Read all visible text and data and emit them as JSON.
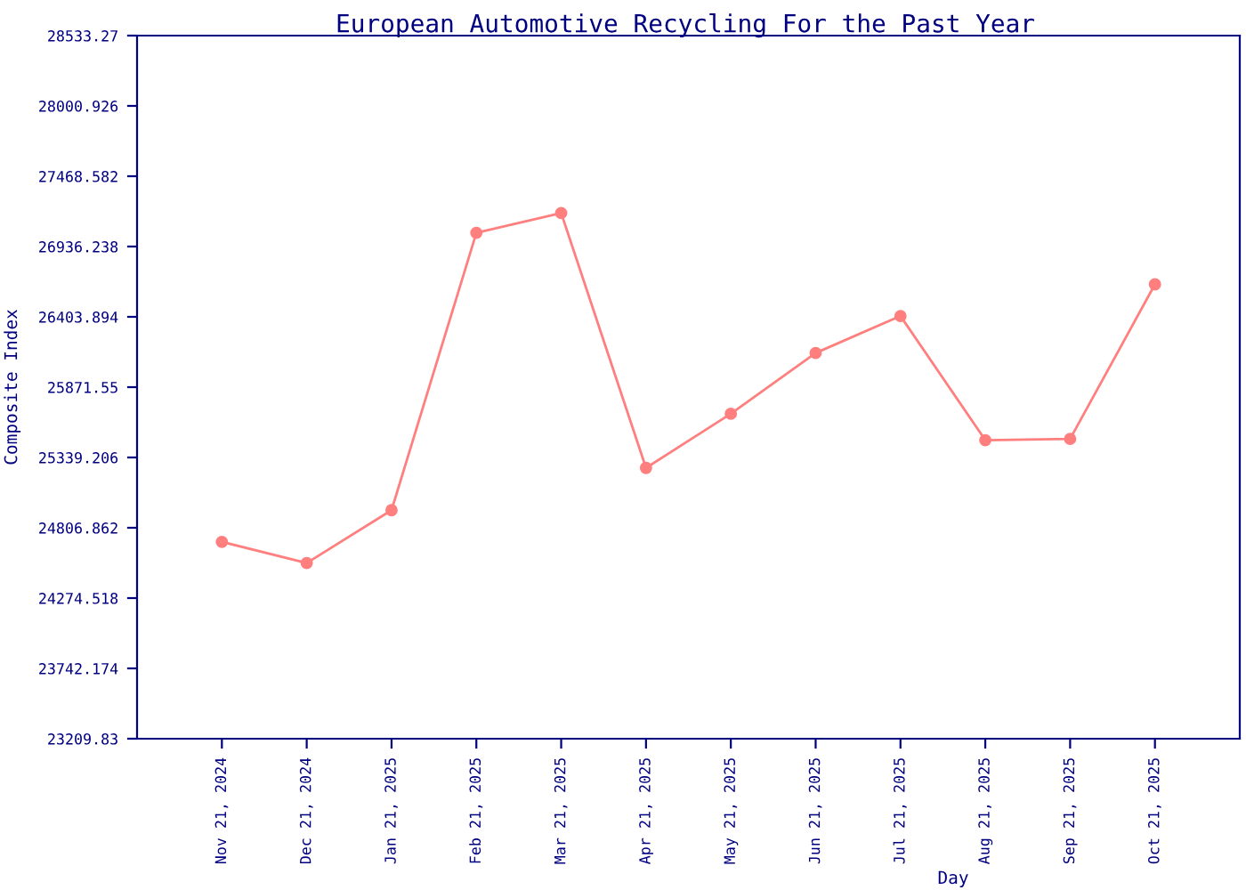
{
  "chart_data": {
    "type": "line",
    "title": "European Automotive Recycling For the Past Year",
    "xlabel": "Day",
    "ylabel": "Composite Index",
    "categories": [
      "Nov 21, 2024",
      "Dec 21, 2024",
      "Jan 21, 2025",
      "Feb 21, 2025",
      "Mar 21, 2025",
      "Apr 21, 2025",
      "May 21, 2025",
      "Jun 21, 2025",
      "Jul 21, 2025",
      "Aug 21, 2025",
      "Sep 21, 2025",
      "Oct 21, 2025"
    ],
    "series": [
      {
        "color": "#ff7f7f",
        "values": [
          24700,
          24540,
          24940,
          27040,
          27190,
          25260,
          25670,
          26130,
          26410,
          25470,
          25480,
          26650
        ]
      }
    ],
    "ylim": [
      23209.83,
      28533.27
    ],
    "yticks": [
      23209.83,
      23742.174,
      24274.518,
      24806.862,
      25339.206,
      25871.55,
      26403.894,
      26936.238,
      27468.582,
      28000.926,
      28533.27
    ],
    "marker": "circle",
    "line_style": "solid",
    "grid": false
  }
}
